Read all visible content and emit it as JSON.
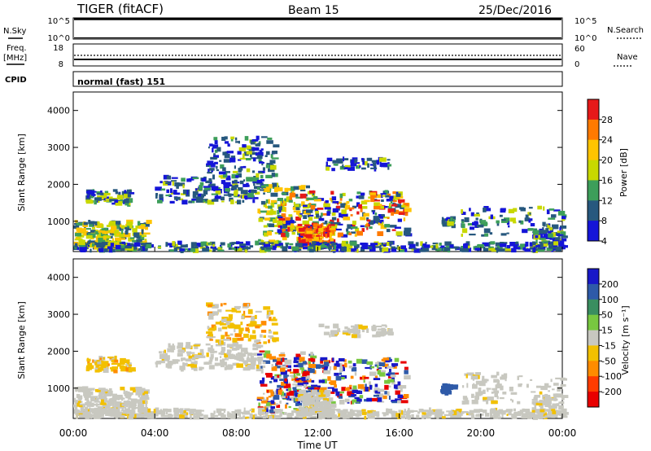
{
  "header": {
    "site": "TIGER (fitACF)",
    "beam": "Beam 15",
    "date": "25/Dec/2016"
  },
  "strip": {
    "nsky_label": "N.Sky",
    "nsearch_label": "N.Search",
    "freq_label": "Freq.",
    "freq_unit": "[MHz]",
    "nave_label": "Nave",
    "cpid_label": "CPID",
    "cpid_value": "normal (fast) 151",
    "noise_ticks": [
      "10^5",
      "10^0"
    ],
    "freq_ticks": [
      "18",
      "8"
    ],
    "nave_ticks": [
      "60",
      "0"
    ]
  },
  "chart_data": [
    {
      "type": "heatmap",
      "panel": "power",
      "ylabel": "Slant Range [km]",
      "colorbar_label": "Power [dB]",
      "colorbar_ticks": [
        "28",
        "24",
        "20",
        "16",
        "12",
        "8",
        "4"
      ],
      "colorbar_colors": [
        "#e61919",
        "#ff7a00",
        "#ffc400",
        "#c8d800",
        "#3d9e5a",
        "#27587e",
        "#1515d8"
      ],
      "xlim": [
        "00:00",
        "24:00"
      ],
      "ylim": [
        180,
        4500
      ],
      "yticks": [
        1000,
        2000,
        3000,
        4000
      ]
    },
    {
      "type": "heatmap",
      "panel": "velocity",
      "ylabel": "Slant Range [km]",
      "colorbar_label": "Velocity [m s⁻¹]",
      "colorbar_ticks": [
        "200",
        "100",
        "50",
        "15",
        "-15",
        "-50",
        "-100",
        "-200"
      ],
      "colorbar_colors": [
        "#1818c8",
        "#2e5aa8",
        "#3a8e60",
        "#78c840",
        "#c8c8c0",
        "#f2c000",
        "#ff8c00",
        "#ff3c00",
        "#e80000"
      ],
      "xlim": [
        "00:00",
        "24:00"
      ],
      "ylim": [
        180,
        4500
      ],
      "yticks": [
        1000,
        2000,
        3000,
        4000
      ]
    }
  ],
  "x_axis": {
    "ticks": [
      "00:00",
      "04:00",
      "08:00",
      "12:00",
      "16:00",
      "20:00",
      "00:00"
    ],
    "label": "Time UT"
  }
}
